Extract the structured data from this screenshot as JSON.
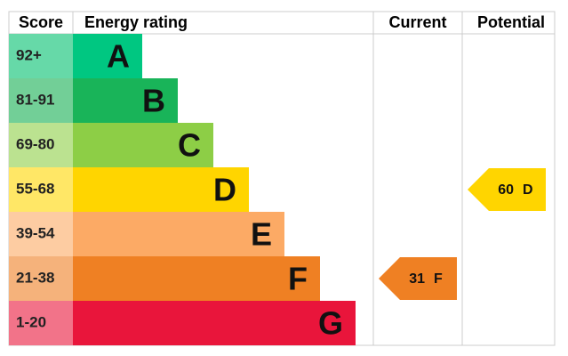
{
  "header": {
    "score": "Score",
    "rating": "Energy rating",
    "current": "Current",
    "potential": "Potential"
  },
  "bands": [
    {
      "score": "92+",
      "letter": "A",
      "color": "#00c781",
      "score_color": "#66d9a8"
    },
    {
      "score": "81-91",
      "letter": "B",
      "color": "#19b459",
      "score_color": "#72cf97"
    },
    {
      "score": "69-80",
      "letter": "C",
      "color": "#8dce46",
      "score_color": "#bbe290"
    },
    {
      "score": "55-68",
      "letter": "D",
      "color": "#ffd500",
      "score_color": "#ffe766"
    },
    {
      "score": "39-54",
      "letter": "E",
      "color": "#fcaa65",
      "score_color": "#fdcca2"
    },
    {
      "score": "21-38",
      "letter": "F",
      "color": "#ef8023",
      "score_color": "#f5b27b"
    },
    {
      "score": "1-20",
      "letter": "G",
      "color": "#e9153b",
      "score_color": "#f27389"
    }
  ],
  "current": {
    "value": 31,
    "letter": "F"
  },
  "potential": {
    "value": 60,
    "letter": "D"
  }
}
